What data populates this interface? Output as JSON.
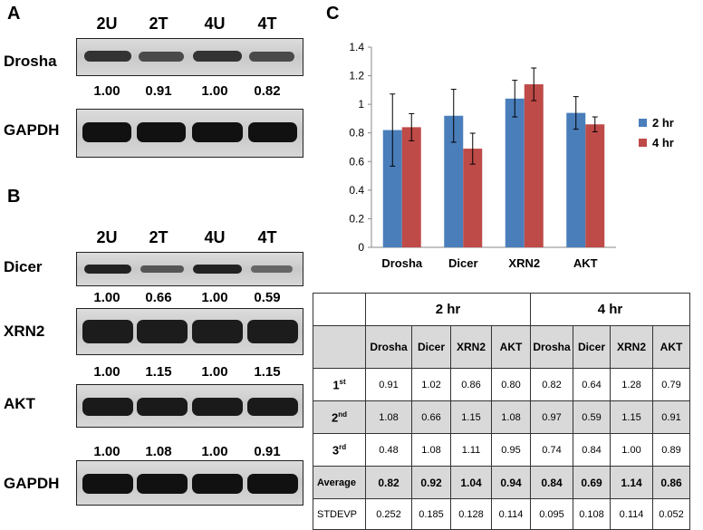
{
  "panels": {
    "a": "A",
    "b": "B",
    "c": "C"
  },
  "lanes": [
    "2U",
    "2T",
    "4U",
    "4T"
  ],
  "blot_a": {
    "proteins": [
      "Drosha",
      "GAPDH"
    ],
    "drosha_quant": [
      "1.00",
      "0.91",
      "1.00",
      "0.82"
    ]
  },
  "blot_b": {
    "proteins": [
      "Dicer",
      "XRN2",
      "AKT",
      "GAPDH"
    ],
    "dicer_quant": [
      "1.00",
      "0.66",
      "1.00",
      "0.59"
    ],
    "xrn2_quant": [
      "1.00",
      "1.15",
      "1.00",
      "1.15"
    ],
    "akt_quant": [
      "1.00",
      "1.08",
      "1.00",
      "0.91"
    ]
  },
  "chart_data": {
    "type": "bar",
    "categories": [
      "Drosha",
      "Dicer",
      "XRN2",
      "AKT"
    ],
    "series": [
      {
        "name": "2 hr",
        "color": "#4a7ebb",
        "values": [
          0.82,
          0.92,
          1.04,
          0.94
        ],
        "errors": [
          0.252,
          0.185,
          0.128,
          0.114
        ]
      },
      {
        "name": "4 hr",
        "color": "#be4b48",
        "values": [
          0.84,
          0.69,
          1.14,
          0.86
        ],
        "errors": [
          0.095,
          0.108,
          0.114,
          0.052
        ]
      }
    ],
    "ylim": [
      0,
      1.4
    ],
    "yticks": [
      "0",
      "0.2",
      "0.4",
      "0.6",
      "0.8",
      "1",
      "1.2",
      "1.4"
    ],
    "legend_position": "right",
    "title": "",
    "xlabel": "",
    "ylabel": ""
  },
  "table": {
    "group_headers": [
      "2 hr",
      "4 hr"
    ],
    "proteins": [
      "Drosha",
      "Dicer",
      "XRN2",
      "AKT"
    ],
    "rows": [
      {
        "label": "1",
        "sup": "st",
        "values": [
          "0.91",
          "1.02",
          "0.86",
          "0.80",
          "0.82",
          "0.64",
          "1.28",
          "0.79"
        ]
      },
      {
        "label": "2",
        "sup": "nd",
        "values": [
          "1.08",
          "0.66",
          "1.15",
          "1.08",
          "0.97",
          "0.59",
          "1.15",
          "0.91"
        ]
      },
      {
        "label": "3",
        "sup": "rd",
        "values": [
          "0.48",
          "1.08",
          "1.11",
          "0.95",
          "0.74",
          "0.84",
          "1.00",
          "0.89"
        ]
      },
      {
        "label": "Average",
        "sup": "",
        "values": [
          "0.82",
          "0.92",
          "1.04",
          "0.94",
          "0.84",
          "0.69",
          "1.14",
          "0.86"
        ]
      },
      {
        "label": "STDEVP",
        "sup": "",
        "values": [
          "0.252",
          "0.185",
          "0.128",
          "0.114",
          "0.095",
          "0.108",
          "0.114",
          "0.052"
        ]
      }
    ]
  }
}
